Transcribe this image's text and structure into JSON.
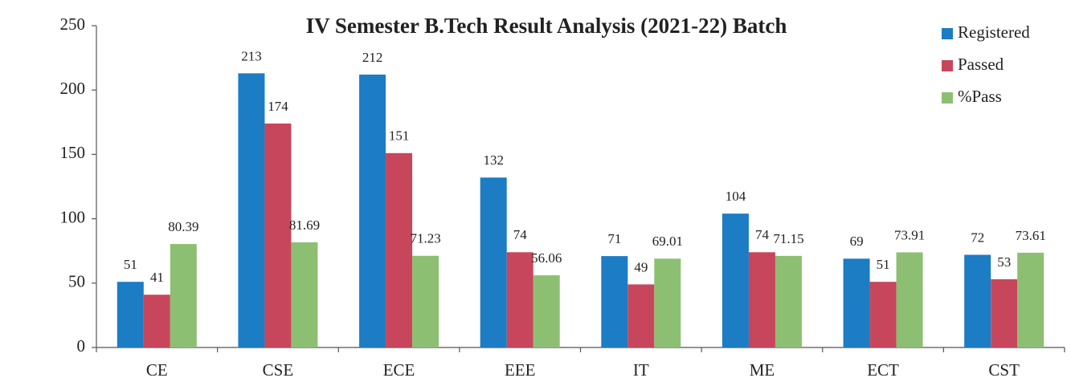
{
  "chart_data": {
    "type": "bar",
    "title": "IV Semester B.Tech Result Analysis (2021-22) Batch",
    "categories": [
      "CE",
      "CSE",
      "ECE",
      "EEE",
      "IT",
      "ME",
      "ECT",
      "CST"
    ],
    "series": [
      {
        "name": "Registered",
        "color": "#1c7cc4",
        "values": [
          51,
          213,
          212,
          132,
          71,
          104,
          69,
          72
        ]
      },
      {
        "name": "Passed",
        "color": "#c8465b",
        "values": [
          41,
          174,
          151,
          74,
          49,
          74,
          51,
          53
        ]
      },
      {
        "name": "%Pass",
        "color": "#8dbf72",
        "values": [
          80.39,
          81.69,
          71.23,
          56.06,
          69.01,
          71.15,
          73.91,
          73.61
        ]
      }
    ],
    "ylim": [
      0,
      250
    ],
    "yticks": [
      0,
      50,
      100,
      150,
      200,
      250
    ],
    "legend": "upper right"
  }
}
